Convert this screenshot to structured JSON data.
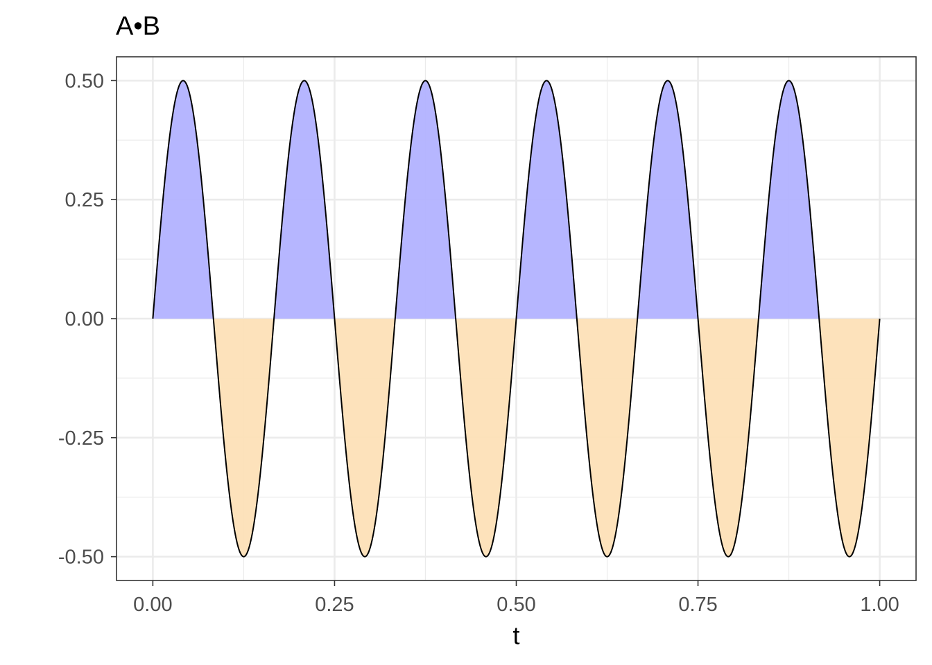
{
  "chart_data": {
    "type": "area",
    "title": "A•B",
    "xlabel": "t",
    "ylabel": "",
    "xlim": [
      -0.05,
      1.05
    ],
    "ylim": [
      -0.55,
      0.55
    ],
    "x_ticks": [
      0.0,
      0.25,
      0.5,
      0.75,
      1.0
    ],
    "x_tick_labels": [
      "0.00",
      "0.25",
      "0.50",
      "0.75",
      "1.00"
    ],
    "y_ticks": [
      0.5,
      0.25,
      0.0,
      -0.25,
      -0.5
    ],
    "y_tick_labels": [
      "0.50",
      "0.25",
      "0.00",
      "-0.25",
      "-0.50"
    ],
    "grid": true,
    "legend": "none",
    "function": "0.5 * sin(2*pi*6*t)",
    "cycles": 6,
    "amplitude": 0.5,
    "x_range": [
      0.0,
      1.0
    ],
    "fill_colors": {
      "positive": "#b2b2ff",
      "negative": "#fde0b7"
    },
    "line_color": "#000000",
    "panel_background": "#ffffff",
    "grid_color": "#ebebeb",
    "border_color": "#333333"
  }
}
